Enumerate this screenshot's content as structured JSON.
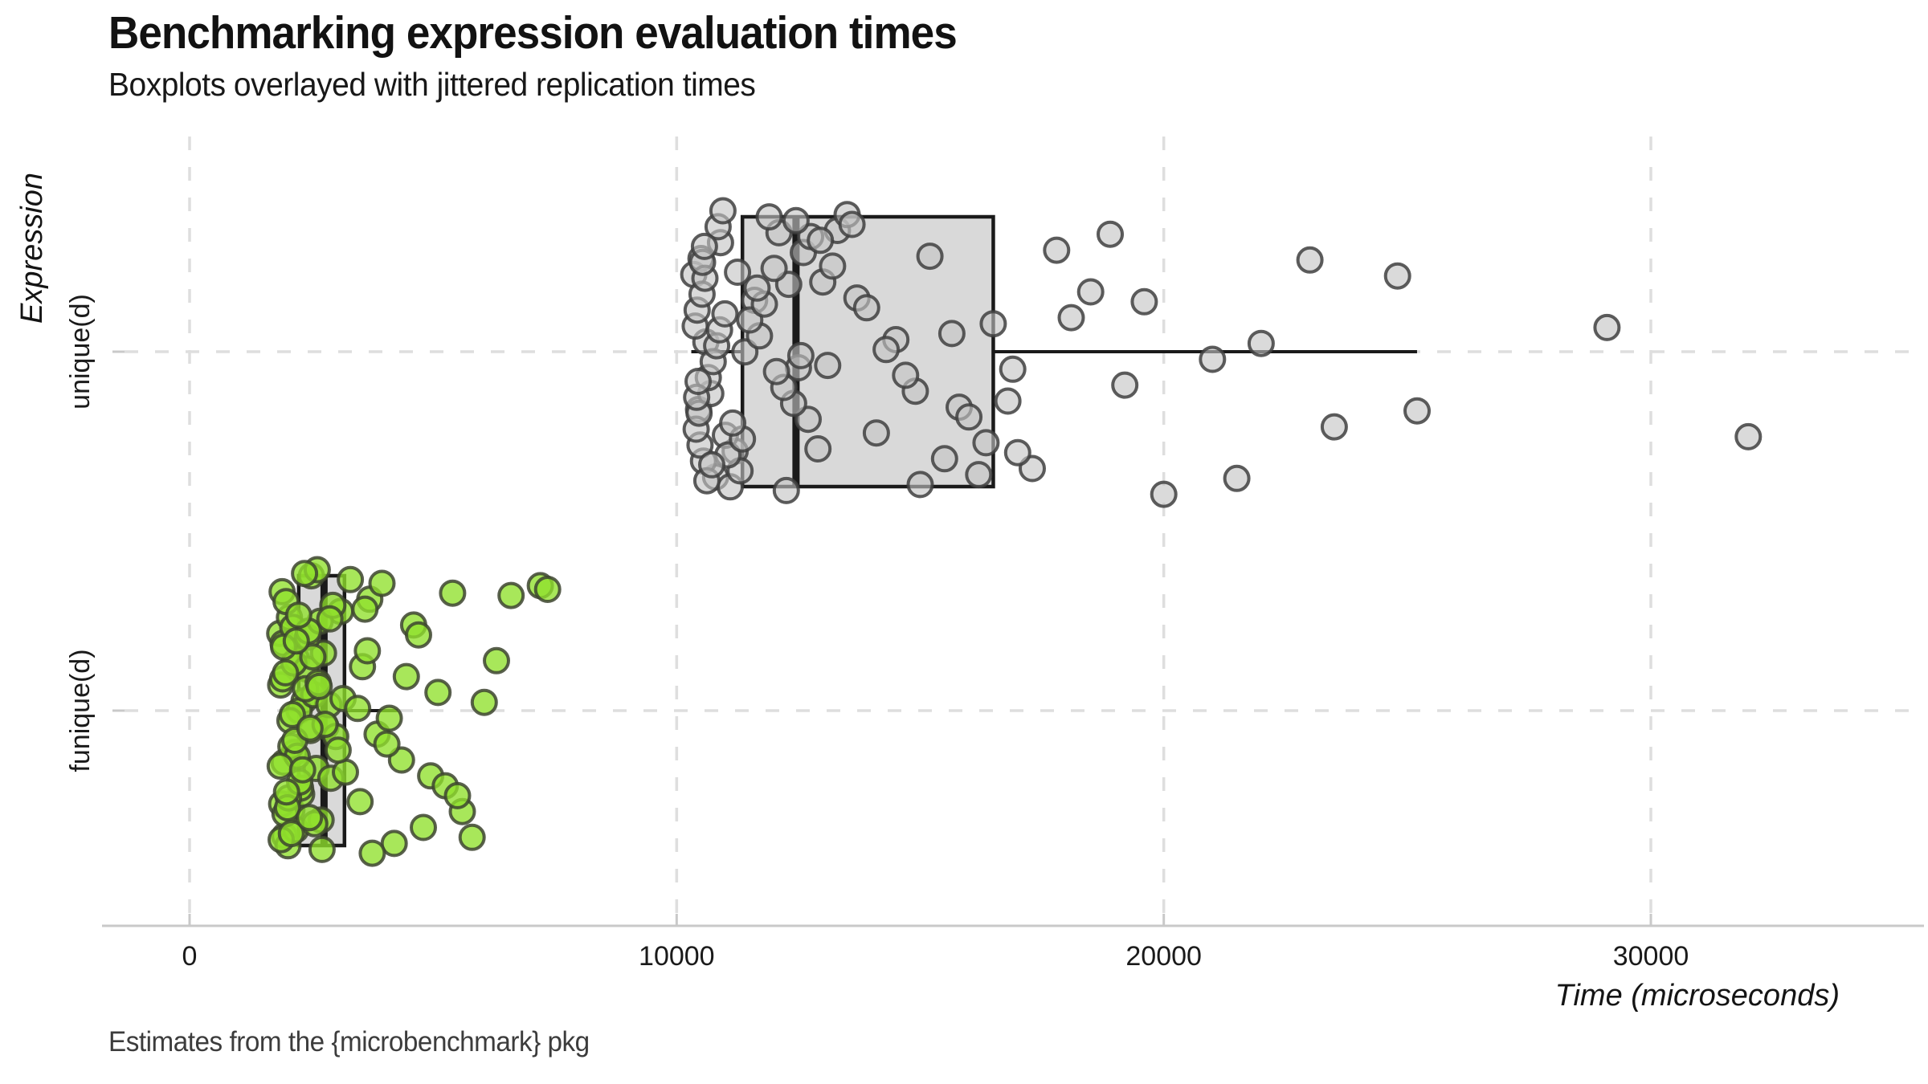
{
  "header": {
    "title": "Benchmarking expression evaluation times",
    "subtitle": "Boxplots overlayed with jittered replication times"
  },
  "caption": "Estimates from the {microbenchmark} pkg",
  "colors": {
    "background": "#ffffff",
    "title_text": "#121212",
    "axis_text": "#1a1a1a",
    "caption_text": "#3c3c3c",
    "gridline": "#dedede",
    "axis_line": "#c9c9c9",
    "box_fill": "#d9d9d9",
    "box_stroke": "#1a1a1a"
  },
  "chart_data": {
    "type": "boxplot",
    "subtype": "horizontal boxplot with jittered points overlay",
    "title": "Benchmarking expression evaluation times",
    "subtitle": "Boxplots overlayed with jittered replication times",
    "caption": "Estimates from the {microbenchmark} pkg",
    "xlabel": "Time (microseconds)",
    "ylabel": "Expression",
    "x_axis": {
      "ticks": [
        0,
        10000,
        20000,
        30000
      ],
      "tick_labels": [
        "0",
        "10000",
        "20000",
        "30000"
      ],
      "range": [
        -1400,
        35200
      ],
      "grid": "dashed"
    },
    "y_axis": {
      "categories": [
        "unique(d)",
        "funique(d)"
      ],
      "grid": "dashed"
    },
    "legend": "none",
    "series": [
      {
        "name": "unique(d)",
        "marker_fill": "#c4c4c4",
        "marker_stroke": "#404040",
        "box": {
          "min": 10300,
          "q1": 11350,
          "median": 12450,
          "q3": 16500,
          "max": 25200
        },
        "outliers": [
          29100,
          32000
        ],
        "points": [
          10350,
          11200,
          10600,
          12100,
          10450,
          11600,
          10800,
          12500,
          10500,
          11000,
          10380,
          11900,
          10700,
          12300,
          10550,
          11400,
          10900,
          12700,
          10420,
          11100,
          10650,
          12000,
          10480,
          11700,
          10850,
          12400,
          10520,
          11300,
          10750,
          12600,
          10400,
          11500,
          10950,
          12200,
          10580,
          11050,
          10820,
          12750,
          10460,
          11800,
          10620,
          12050,
          10530,
          11350,
          10880,
          12450,
          10410,
          11650,
          10720,
          12550,
          10570,
          11150,
          10990,
          12250,
          10440,
          11250,
          12900,
          14500,
          13300,
          15800,
          13700,
          16200,
          13100,
          15200,
          14100,
          16500,
          13500,
          14900,
          13000,
          15500,
          14300,
          12950,
          16000,
          13900,
          15000,
          14700,
          13200,
          16350,
          15650,
          13600,
          16800,
          18500,
          17300,
          21000,
          17800,
          23500,
          18100,
          20000,
          19200,
          24800,
          17000,
          22000,
          18900,
          25200,
          19600,
          21500,
          16900,
          23000,
          32000,
          29100
        ]
      },
      {
        "name": "funique(d)",
        "marker_fill": "#8fe02c",
        "marker_stroke": "#3d4430",
        "box": {
          "min": 1880,
          "q1": 2240,
          "median": 2760,
          "q3": 3180,
          "max": 4270
        },
        "outliers": [
          6600,
          7200,
          7350
        ],
        "points": [
          1850,
          2100,
          2350,
          1900,
          2600,
          2200,
          1950,
          2800,
          2050,
          2300,
          1870,
          2500,
          2150,
          1920,
          2700,
          2250,
          1980,
          2900,
          2400,
          2020,
          3000,
          2120,
          1890,
          2550,
          7200,
          1940,
          2750,
          2180,
          2060,
          3100,
          2280,
          1910,
          2620,
          2080,
          2420,
          1960,
          2860,
          6600,
          3200,
          2140,
          1880,
          2480,
          2680,
          2030,
          2380,
          3300,
          2210,
          1930,
          2570,
          2110,
          2940,
          2260,
          1970,
          2720,
          2160,
          2440,
          2010,
          3150,
          7350,
          1860,
          2530,
          2090,
          2780,
          2240,
          1990,
          2640,
          2360,
          3050,
          2190,
          2460,
          3450,
          3700,
          4950,
          3550,
          4200,
          3850,
          4600,
          3500,
          5100,
          3950,
          4350,
          3650,
          4800,
          4100,
          3600,
          5250,
          4450,
          3750,
          4050,
          4700,
          5600,
          6050,
          5400,
          2320,
          6300,
          5800,
          2470,
          2880,
          5500,
          2660
        ]
      }
    ]
  }
}
